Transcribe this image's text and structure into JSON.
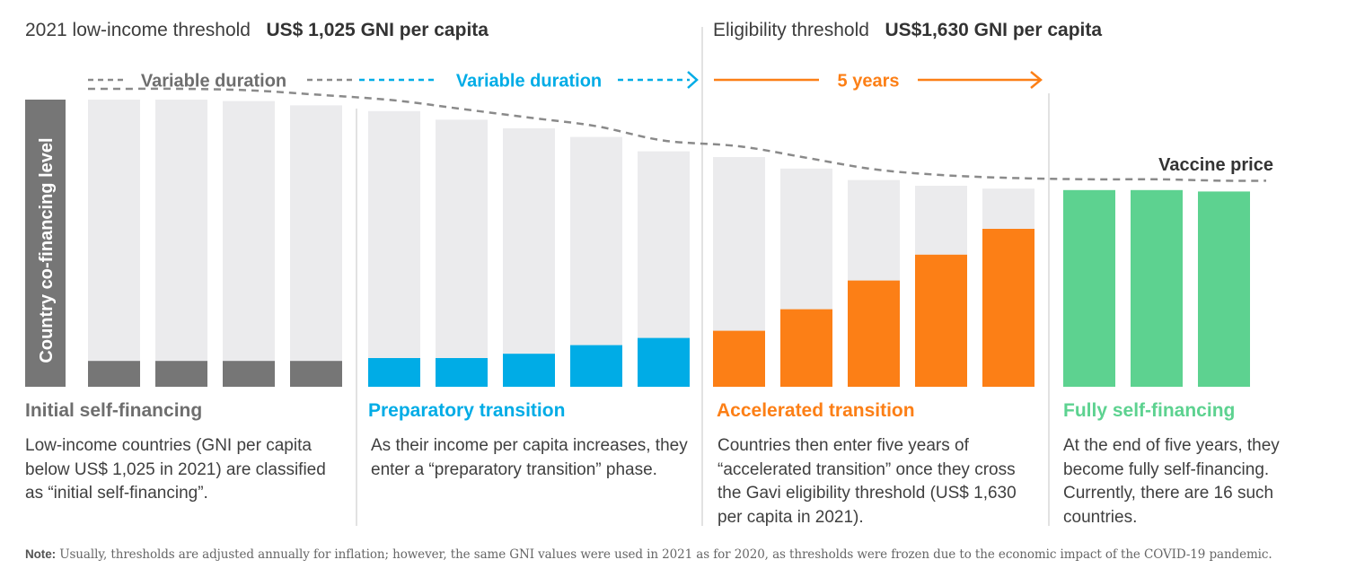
{
  "headers": {
    "low_income_label": "2021 low-income threshold",
    "low_income_value": "US$ 1,025 GNI per capita",
    "eligibility_label": "Eligibility threshold",
    "eligibility_value": "US$1,630 GNI per capita"
  },
  "duration_labels": {
    "initial": "Variable duration",
    "preparatory": "Variable duration",
    "accelerated": "5 years"
  },
  "y_axis_label": "Country co-financing level",
  "vaccine_price_label": "Vaccine price",
  "colors": {
    "initial": "#767676",
    "preparatory": "#00ace6",
    "accelerated": "#fc7f16",
    "fully": "#5dd290",
    "bar_background": "#ebebed",
    "axis_band": "#767676",
    "price_line": "#8a8a8a"
  },
  "chart_data": {
    "type": "bar",
    "title": "",
    "ylabel": "Country co-financing level",
    "xlabel": "",
    "ylim": [
      0,
      100
    ],
    "phases": [
      {
        "key": "initial",
        "name": "Initial self-financing",
        "price": [
          100,
          100,
          99.5,
          98
        ],
        "cofinancing": [
          9,
          9,
          9,
          9
        ]
      },
      {
        "key": "preparatory",
        "name": "Preparatory transition",
        "price": [
          96,
          93,
          90,
          87,
          82
        ],
        "cofinancing": [
          10,
          10,
          11.5,
          14.5,
          17
        ]
      },
      {
        "key": "accelerated",
        "name": "Accelerated transition",
        "price": [
          80,
          76,
          72,
          70,
          69
        ],
        "cofinancing": [
          19.5,
          27,
          37,
          46,
          55
        ]
      },
      {
        "key": "fully",
        "name": "Fully self-financing",
        "price": [
          68.5,
          68.5,
          68
        ],
        "cofinancing": [
          68.5,
          68.5,
          68
        ]
      }
    ]
  },
  "phases": [
    {
      "title": "Initial self-financing",
      "description": "Low-income countries (GNI per capita below US$ 1,025 in 2021) are classified as “initial self-financing”."
    },
    {
      "title": "Preparatory transition",
      "description": "As their income per capita increases, they enter a “preparatory transition” phase."
    },
    {
      "title": "Accelerated transition",
      "description": "Countries then enter five years of “accelerated transition” once they cross the Gavi eligibility threshold (US$ 1,630 per capita in 2021)."
    },
    {
      "title": "Fully self-financing",
      "description": "At the end of five years, they become fully self-financing. Currently, there are 16 such countries."
    }
  ],
  "note": {
    "label": "Note:",
    "text": "Usually, thresholds are adjusted annually for inflation; however, the same GNI values were used in 2021 as for 2020, as thresholds were frozen due to the economic impact of the COVID-19 pandemic."
  }
}
